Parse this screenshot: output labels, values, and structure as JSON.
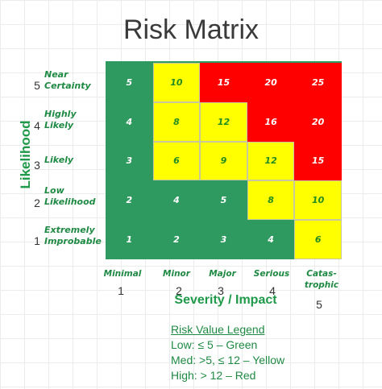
{
  "chart_data": {
    "type": "heatmap",
    "title": "Risk Matrix",
    "xlabel": "Severity / Impact",
    "ylabel": "Likelihood",
    "x_categories": [
      {
        "num": "1",
        "label": "Minimal"
      },
      {
        "num": "2",
        "label": "Minor"
      },
      {
        "num": "3",
        "label": "Major"
      },
      {
        "num": "4",
        "label": "Serious"
      },
      {
        "num": "5",
        "label": "Catas-trophic"
      }
    ],
    "y_categories": [
      {
        "num": "5",
        "label": "Near Certainty"
      },
      {
        "num": "4",
        "label": "Highly Likely"
      },
      {
        "num": "3",
        "label": "Likely"
      },
      {
        "num": "2",
        "label": "Low Likelihood"
      },
      {
        "num": "1",
        "label": "Extremely Improbable"
      }
    ],
    "values": [
      [
        5,
        10,
        15,
        20,
        25
      ],
      [
        4,
        8,
        12,
        16,
        20
      ],
      [
        3,
        6,
        9,
        12,
        15
      ],
      [
        2,
        4,
        5,
        8,
        10
      ],
      [
        1,
        2,
        3,
        4,
        6
      ]
    ],
    "levels": [
      [
        "green",
        "yellow",
        "red",
        "red",
        "red"
      ],
      [
        "green",
        "yellow",
        "yellow",
        "red",
        "red"
      ],
      [
        "green",
        "yellow",
        "yellow",
        "yellow",
        "red"
      ],
      [
        "green",
        "green",
        "green",
        "yellow",
        "yellow"
      ],
      [
        "green",
        "green",
        "green",
        "green",
        "yellow"
      ]
    ],
    "colors": {
      "green": "#2e9a5f",
      "yellow": "#ffff00",
      "red": "#ff0000"
    },
    "legend": {
      "title": "Risk Value Legend",
      "low": "Low: ≤ 5 – Green",
      "med": "Med: >5, ≤ 12 – Yellow",
      "high": "High: > 12 – Red"
    }
  }
}
